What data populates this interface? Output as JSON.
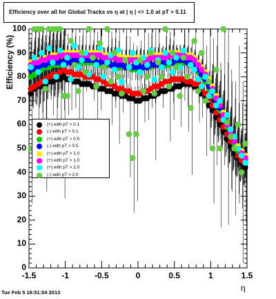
{
  "title": "Efficiency over all for Global Tracks vs  η at |  η | <= 1.0 at pT > 0.11",
  "footer": "Tue Feb  5 16:51:04 2013",
  "chart_data": {
    "type": "scatter",
    "xlabel": "η",
    "ylabel": "Efficiency (%)",
    "xlim": [
      -1.5,
      1.5
    ],
    "ylim": [
      0,
      100
    ],
    "x_ticks": [
      "-1.5",
      "-1",
      "-0.5",
      "0",
      "0.5",
      "1",
      "1.5"
    ],
    "y_ticks": [
      "0",
      "10",
      "20",
      "30",
      "40",
      "50",
      "60",
      "70",
      "80",
      "90",
      "100"
    ],
    "legend_position": "left-middle",
    "x": [
      -1.475,
      -1.425,
      -1.375,
      -1.325,
      -1.275,
      -1.225,
      -1.175,
      -1.125,
      -1.075,
      -1.025,
      -0.975,
      -0.925,
      -0.875,
      -0.825,
      -0.775,
      -0.725,
      -0.675,
      -0.625,
      -0.575,
      -0.525,
      -0.475,
      -0.425,
      -0.375,
      -0.325,
      -0.275,
      -0.225,
      -0.175,
      -0.125,
      -0.075,
      -0.025,
      0.025,
      0.075,
      0.125,
      0.175,
      0.225,
      0.275,
      0.325,
      0.375,
      0.425,
      0.475,
      0.525,
      0.575,
      0.625,
      0.675,
      0.725,
      0.775,
      0.825,
      0.875,
      0.925,
      0.975,
      1.025,
      1.075,
      1.125,
      1.175,
      1.225,
      1.275,
      1.325,
      1.375,
      1.425,
      1.475
    ],
    "series": [
      {
        "name": "(+) with pT > 0.1",
        "color": "#000000",
        "values": [
          73,
          75,
          76,
          76,
          77,
          78,
          78,
          79,
          79,
          80,
          79,
          79,
          78,
          78,
          77,
          77,
          77,
          76,
          76,
          75,
          75,
          74,
          74,
          73,
          73,
          72,
          72,
          71,
          71,
          70,
          70,
          71,
          71,
          72,
          72,
          73,
          74,
          74,
          75,
          75,
          76,
          76,
          77,
          77,
          77,
          76,
          75,
          73,
          71,
          68,
          66,
          63,
          60,
          57,
          54,
          51,
          48,
          46,
          44,
          42
        ]
      },
      {
        "name": "(-) with pT > 0.1",
        "color": "#ff0000",
        "values": [
          75,
          76,
          77,
          78,
          79,
          80,
          81,
          81,
          82,
          83,
          82,
          82,
          81,
          81,
          81,
          80,
          80,
          80,
          79,
          79,
          78,
          77,
          77,
          76,
          75,
          75,
          74,
          74,
          73,
          73,
          73,
          74,
          74,
          75,
          76,
          76,
          77,
          78,
          78,
          79,
          79,
          79,
          79,
          78,
          78,
          77,
          77,
          75,
          73,
          71,
          68,
          65,
          62,
          59,
          56,
          53,
          50,
          47,
          45,
          44
        ]
      },
      {
        "name": "(+) with pT > 0.5",
        "color": "#00cc00",
        "values": [
          80,
          81,
          82,
          83,
          84,
          84,
          85,
          85,
          85,
          85,
          86,
          86,
          86,
          86,
          86,
          86,
          86,
          86,
          85,
          85,
          85,
          85,
          85,
          84,
          84,
          84,
          84,
          84,
          83,
          83,
          83,
          84,
          84,
          84,
          85,
          85,
          85,
          85,
          85,
          86,
          86,
          86,
          86,
          86,
          85,
          84,
          82,
          80,
          78,
          75,
          72,
          69,
          66,
          62,
          59,
          55,
          52,
          49,
          47,
          45
        ]
      },
      {
        "name": "(-) with pT > 0.5",
        "color": "#0000ff",
        "values": [
          83,
          84,
          84,
          85,
          85,
          86,
          86,
          86,
          86,
          86,
          86,
          86,
          87,
          87,
          87,
          87,
          87,
          87,
          86,
          86,
          86,
          86,
          85,
          85,
          85,
          85,
          84,
          84,
          84,
          84,
          84,
          84,
          84,
          85,
          85,
          85,
          86,
          86,
          86,
          86,
          87,
          87,
          87,
          86,
          86,
          85,
          83,
          81,
          79,
          76,
          73,
          70,
          67,
          63,
          60,
          56,
          53,
          50,
          48,
          46
        ]
      },
      {
        "name": "(+) with pT > 1.0",
        "color": "#ffee00",
        "values": [
          86,
          86,
          87,
          87,
          88,
          88,
          89,
          89,
          89,
          90,
          90,
          90,
          90,
          90,
          90,
          90,
          90,
          90,
          90,
          90,
          89,
          89,
          89,
          89,
          89,
          88,
          88,
          88,
          88,
          88,
          88,
          88,
          88,
          89,
          89,
          89,
          89,
          89,
          90,
          90,
          90,
          90,
          90,
          89,
          89,
          88,
          86,
          84,
          82,
          79,
          76,
          72,
          69,
          65,
          61,
          58,
          54,
          51,
          49,
          47
        ]
      },
      {
        "name": "(+) with pT > 1.0",
        "color": "#ff00ff",
        "values": [
          85,
          86,
          86,
          87,
          87,
          88,
          88,
          88,
          89,
          89,
          89,
          89,
          89,
          89,
          89,
          89,
          89,
          89,
          89,
          89,
          88,
          88,
          88,
          88,
          87,
          87,
          87,
          87,
          87,
          87,
          87,
          87,
          87,
          88,
          88,
          88,
          88,
          88,
          89,
          89,
          89,
          89,
          89,
          88,
          88,
          87,
          85,
          83,
          81,
          78,
          75,
          71,
          68,
          64,
          60,
          57,
          53,
          50,
          48,
          46
        ]
      },
      {
        "name": "(+) with pT > 2.0",
        "color": "#00ffff",
        "values": [
          84,
          88,
          82,
          90,
          78,
          92,
          86,
          80,
          91,
          85,
          88,
          79,
          93,
          84,
          87,
          90,
          81,
          88,
          85,
          92,
          80,
          86,
          89,
          83,
          91,
          78,
          87,
          84,
          90,
          86,
          82,
          88,
          85,
          91,
          79,
          87,
          84,
          90,
          86,
          82,
          88,
          84,
          91,
          80,
          85,
          83,
          79,
          76,
          80,
          72,
          74,
          68,
          70,
          62,
          64,
          58,
          55,
          50,
          47,
          44
        ]
      },
      {
        "name": "(-) with pT > 2.0",
        "color": "#66cc44",
        "values": [
          50,
          100,
          100,
          100,
          75,
          100,
          100,
          100,
          100,
          72,
          72,
          95,
          85,
          74,
          90,
          82,
          100,
          88,
          76,
          94,
          84,
          100,
          78,
          90,
          80,
          73,
          87,
          56,
          46,
          56,
          87,
          74,
          80,
          90,
          73,
          86,
          80,
          100,
          76,
          90,
          84,
          72,
          88,
          80,
          67,
          95,
          74,
          90,
          70,
          78,
          50,
          83,
          50,
          100,
          61,
          55,
          50,
          60,
          40,
          52
        ]
      }
    ]
  }
}
